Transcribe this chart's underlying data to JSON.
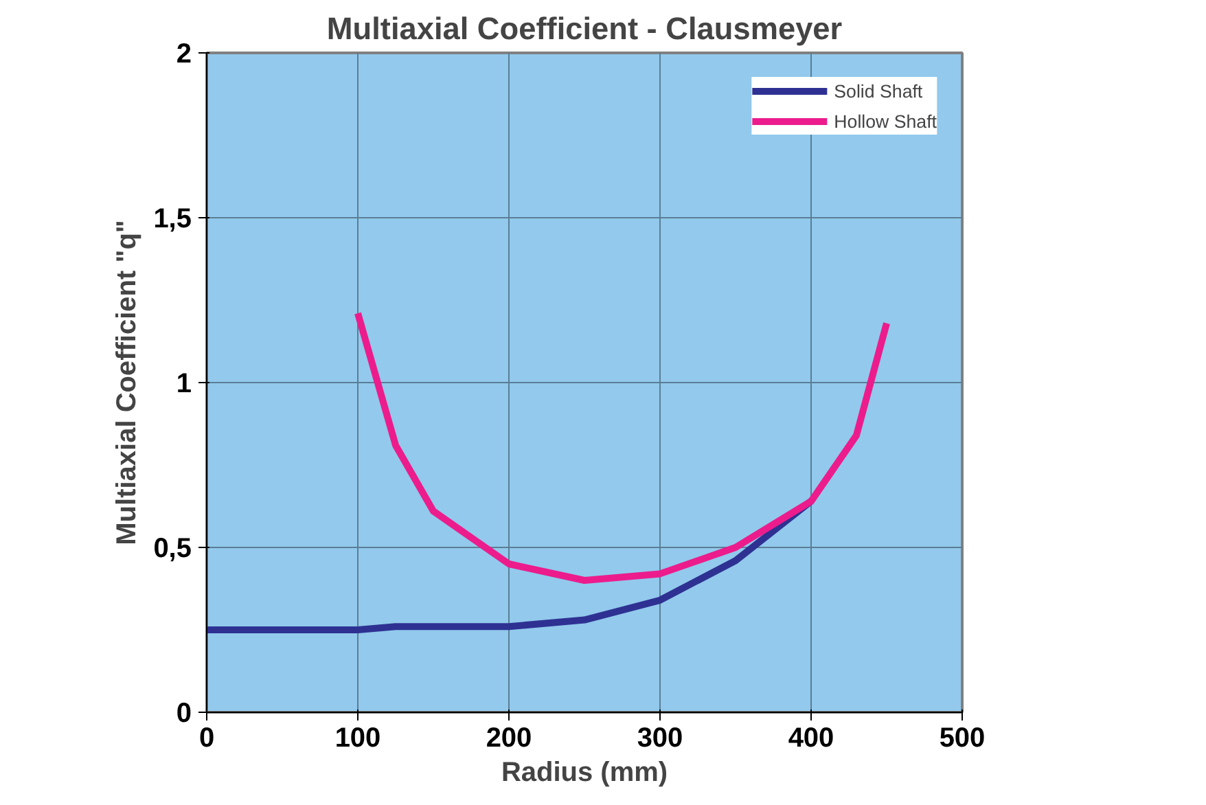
{
  "chart_data": {
    "type": "line",
    "title": "Multiaxial Coefficient - Clausmeyer",
    "xlabel": "Radius (mm)",
    "ylabel": "Multiaxial Coefficient \"q\"",
    "xlim": [
      0,
      500
    ],
    "xticks": [
      0,
      100,
      200,
      300,
      400,
      500
    ],
    "ylim": [
      0,
      2
    ],
    "yticks": [
      0,
      {
        "value": 0.5,
        "label": "0,5"
      },
      1,
      {
        "value": 1.5,
        "label": "1,5"
      },
      2
    ],
    "grid": true,
    "legend": "top right",
    "series": [
      {
        "name": "Solid Shaft",
        "color": "#2e3192",
        "x": [
          0,
          100,
          125,
          200,
          250,
          300,
          350,
          400
        ],
        "values": [
          0.25,
          0.25,
          0.26,
          0.26,
          0.28,
          0.34,
          0.46,
          0.64
        ]
      },
      {
        "name": "Hollow Shaft",
        "color": "#ec1c8c",
        "x": [
          100,
          125,
          150,
          200,
          250,
          300,
          350,
          400,
          430,
          450
        ],
        "values": [
          1.21,
          0.81,
          0.61,
          0.45,
          0.4,
          0.42,
          0.5,
          0.64,
          0.84,
          1.18
        ]
      }
    ]
  }
}
